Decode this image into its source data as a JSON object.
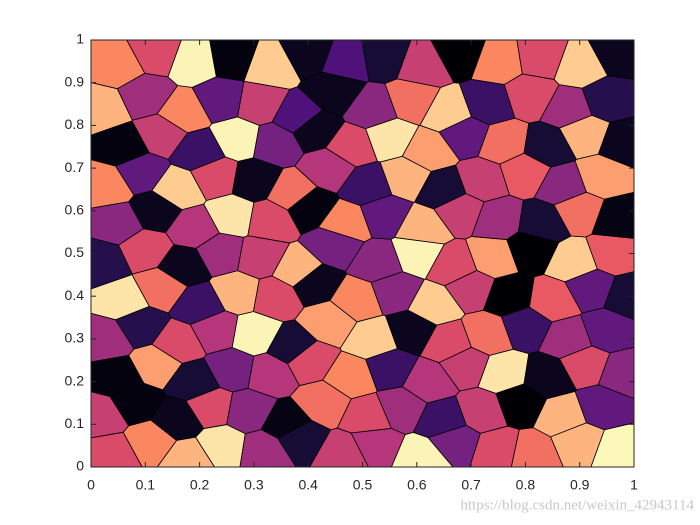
{
  "chart_data": {
    "type": "voronoi",
    "colormap": "magma",
    "xlim": [
      0,
      1
    ],
    "ylim": [
      0,
      1
    ],
    "xticks": [
      0,
      0.1,
      0.2,
      0.3,
      0.4,
      0.5,
      0.6,
      0.7,
      0.8,
      0.9,
      1
    ],
    "yticks": [
      0,
      0.1,
      0.2,
      0.3,
      0.4,
      0.5,
      0.6,
      0.7,
      0.8,
      0.9,
      1
    ],
    "x": [
      0.04,
      0.11,
      0.18,
      0.24,
      0.32,
      0.38,
      0.47,
      0.52,
      0.61,
      0.67,
      0.75,
      0.81,
      0.9,
      0.97,
      0.02,
      0.08,
      0.16,
      0.22,
      0.29,
      0.36,
      0.43,
      0.51,
      0.57,
      0.65,
      0.72,
      0.79,
      0.87,
      0.94,
      0.05,
      0.12,
      0.19,
      0.26,
      0.33,
      0.4,
      0.48,
      0.55,
      0.62,
      0.69,
      0.76,
      0.84,
      0.91,
      0.98,
      0.03,
      0.09,
      0.16,
      0.23,
      0.3,
      0.37,
      0.44,
      0.52,
      0.59,
      0.66,
      0.73,
      0.8,
      0.88,
      0.95,
      0.06,
      0.13,
      0.2,
      0.27,
      0.34,
      0.41,
      0.49,
      0.56,
      0.63,
      0.7,
      0.77,
      0.85,
      0.92,
      0.99,
      0.02,
      0.1,
      0.17,
      0.24,
      0.31,
      0.38,
      0.45,
      0.53,
      0.6,
      0.67,
      0.74,
      0.81,
      0.89,
      0.96,
      0.05,
      0.12,
      0.19,
      0.26,
      0.33,
      0.4,
      0.47,
      0.54,
      0.61,
      0.68,
      0.75,
      0.83,
      0.9,
      0.97,
      0.03,
      0.09,
      0.16,
      0.23,
      0.3,
      0.37,
      0.44,
      0.51,
      0.58,
      0.65,
      0.72,
      0.8,
      0.87,
      0.94,
      0.06,
      0.13,
      0.2,
      0.27,
      0.34,
      0.41,
      0.48,
      0.55,
      0.62,
      0.69,
      0.76,
      0.84,
      0.91,
      0.98,
      0.02,
      0.1,
      0.17,
      0.24,
      0.31,
      0.38,
      0.45,
      0.52,
      0.59,
      0.66,
      0.73,
      0.81,
      0.88,
      0.95,
      0.05,
      0.12,
      0.19,
      0.26,
      0.33,
      0.4,
      0.47,
      0.54,
      0.61,
      0.68,
      0.75,
      0.83,
      0.9,
      0.97
    ],
    "y": [
      0.03,
      0.06,
      0.02,
      0.05,
      0.04,
      0.07,
      0.03,
      0.05,
      0.02,
      0.06,
      0.04,
      0.03,
      0.06,
      0.04,
      0.12,
      0.15,
      0.11,
      0.14,
      0.13,
      0.1,
      0.15,
      0.12,
      0.14,
      0.11,
      0.13,
      0.15,
      0.12,
      0.14,
      0.21,
      0.24,
      0.2,
      0.23,
      0.22,
      0.25,
      0.21,
      0.23,
      0.2,
      0.24,
      0.22,
      0.21,
      0.24,
      0.22,
      0.3,
      0.33,
      0.29,
      0.32,
      0.31,
      0.28,
      0.34,
      0.3,
      0.32,
      0.29,
      0.31,
      0.33,
      0.3,
      0.32,
      0.39,
      0.42,
      0.38,
      0.41,
      0.4,
      0.43,
      0.39,
      0.41,
      0.38,
      0.42,
      0.4,
      0.39,
      0.42,
      0.4,
      0.48,
      0.51,
      0.47,
      0.5,
      0.49,
      0.46,
      0.52,
      0.48,
      0.5,
      0.47,
      0.49,
      0.51,
      0.48,
      0.5,
      0.57,
      0.6,
      0.56,
      0.59,
      0.58,
      0.61,
      0.57,
      0.59,
      0.56,
      0.6,
      0.58,
      0.57,
      0.6,
      0.58,
      0.66,
      0.69,
      0.65,
      0.68,
      0.67,
      0.64,
      0.7,
      0.66,
      0.68,
      0.65,
      0.67,
      0.69,
      0.66,
      0.68,
      0.75,
      0.78,
      0.74,
      0.77,
      0.76,
      0.79,
      0.75,
      0.77,
      0.74,
      0.78,
      0.76,
      0.75,
      0.78,
      0.76,
      0.84,
      0.87,
      0.83,
      0.86,
      0.85,
      0.82,
      0.88,
      0.84,
      0.86,
      0.83,
      0.85,
      0.87,
      0.84,
      0.86,
      0.94,
      0.97,
      0.95,
      0.96,
      0.94,
      0.97,
      0.95,
      0.96,
      0.94,
      0.97,
      0.95,
      0.96,
      0.94,
      0.97
    ],
    "c": [
      0.6,
      0.75,
      0.85,
      0.95,
      0.45,
      0.1,
      0.55,
      0.5,
      0.98,
      0.35,
      0.6,
      0.7,
      0.85,
      0.99,
      0.55,
      0.02,
      0.05,
      0.6,
      0.4,
      0.03,
      0.7,
      0.6,
      0.45,
      0.2,
      0.55,
      0.0,
      0.85,
      0.3,
      0.02,
      0.8,
      0.1,
      0.35,
      0.5,
      0.6,
      0.75,
      0.2,
      0.5,
      0.55,
      0.95,
      0.05,
      0.6,
      0.4,
      0.45,
      0.15,
      0.6,
      0.5,
      0.98,
      0.1,
      0.8,
      0.9,
      0.05,
      0.6,
      0.7,
      0.2,
      0.45,
      0.3,
      0.95,
      0.7,
      0.2,
      0.85,
      0.6,
      0.05,
      0.75,
      0.4,
      0.9,
      0.55,
      0.0,
      0.65,
      0.3,
      0.1,
      0.15,
      0.6,
      0.05,
      0.45,
      0.55,
      0.85,
      0.35,
      0.4,
      0.98,
      0.6,
      0.8,
      0.0,
      0.9,
      0.65,
      0.4,
      0.05,
      0.5,
      0.95,
      0.6,
      0.02,
      0.75,
      0.3,
      0.85,
      0.55,
      0.45,
      0.1,
      0.7,
      0.03,
      0.75,
      0.3,
      0.9,
      0.6,
      0.05,
      0.7,
      0.5,
      0.2,
      0.85,
      0.1,
      0.55,
      0.65,
      0.4,
      0.8,
      0.02,
      0.55,
      0.2,
      0.98,
      0.35,
      0.05,
      0.6,
      0.95,
      0.8,
      0.3,
      0.7,
      0.1,
      0.85,
      0.05,
      0.85,
      0.45,
      0.75,
      0.3,
      0.55,
      0.25,
      0.05,
      0.4,
      0.7,
      0.9,
      0.2,
      0.6,
      0.45,
      0.15,
      0.75,
      0.6,
      0.98,
      0.02,
      0.9,
      0.05,
      0.25,
      0.1,
      0.55,
      0.0,
      0.75,
      0.6,
      0.9,
      0.05
    ]
  },
  "watermark": "https://blog.csdn.net/weixin_42943114"
}
